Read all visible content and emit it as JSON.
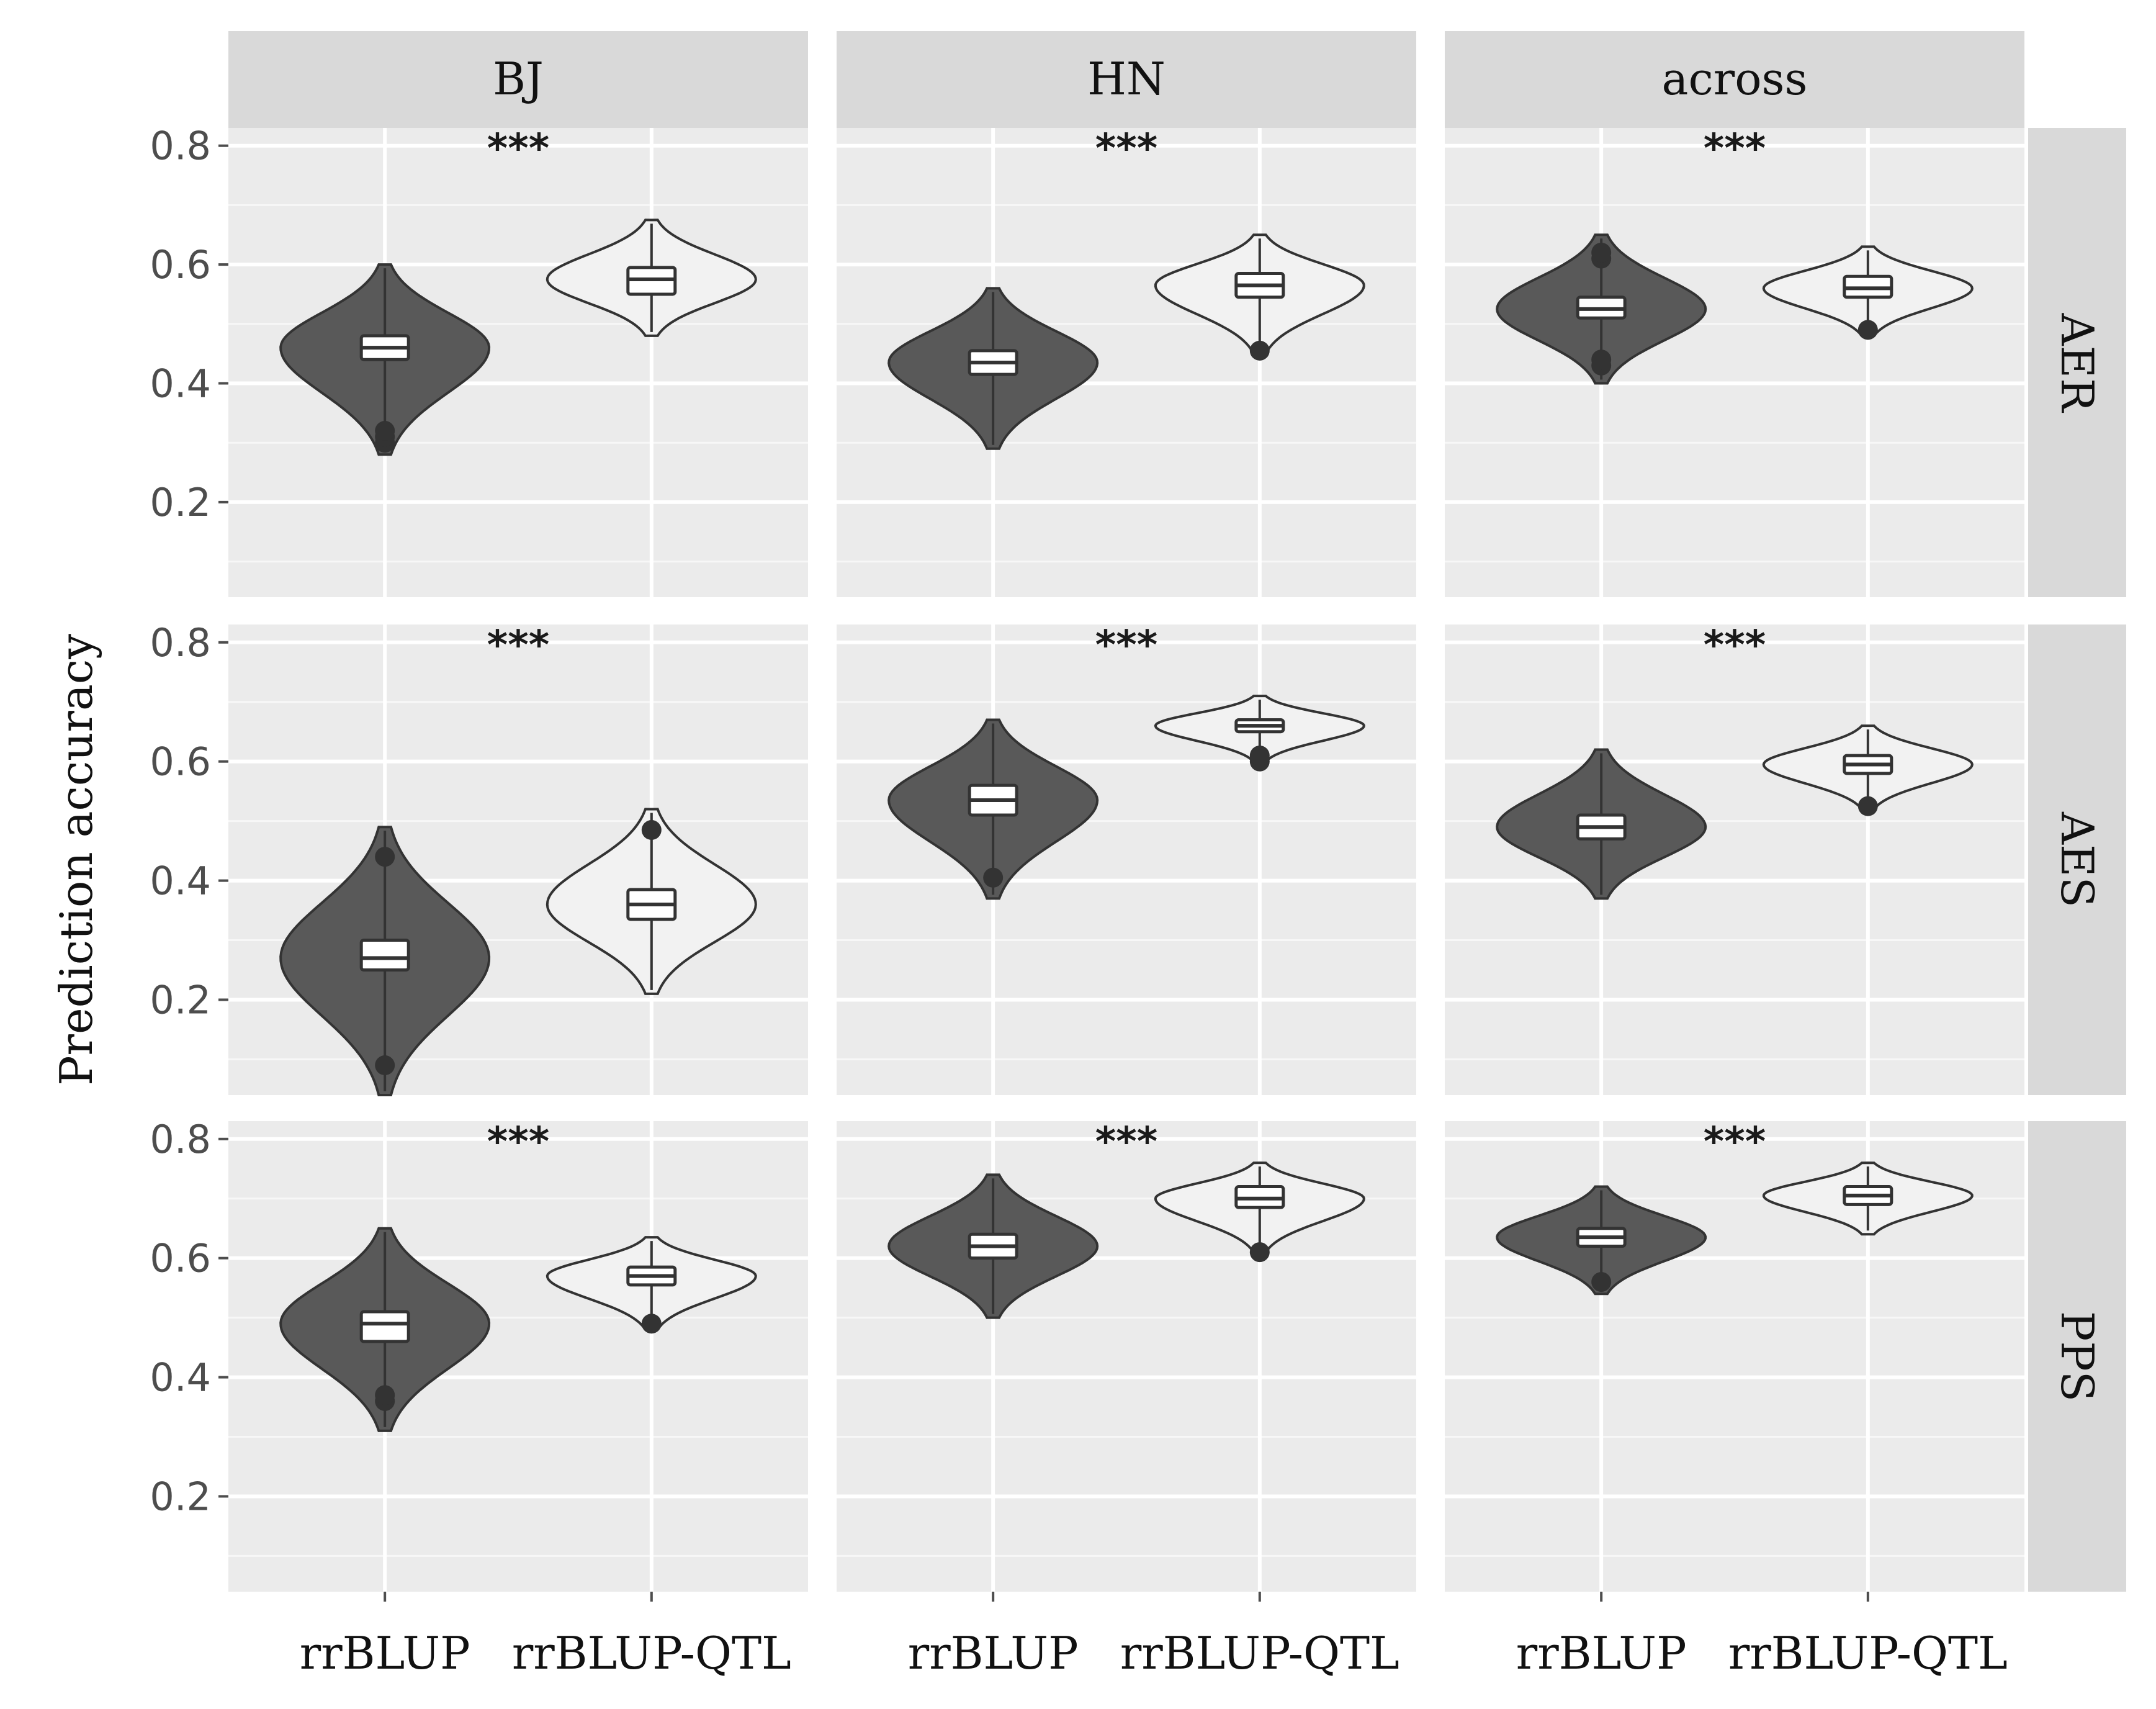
{
  "chart_data": {
    "type": "violin",
    "ylabel": "Prediction accuracy",
    "xlabel": "",
    "ylim": [
      0.04,
      0.83
    ],
    "yticks": [
      "0.2",
      "0.4",
      "0.6",
      "0.8"
    ],
    "categories": [
      "rrBLUP",
      "rrBLUP-QTL"
    ],
    "column_facets": [
      "BJ",
      "HN",
      "across"
    ],
    "row_facets": [
      "AER",
      "AES",
      "PPS"
    ],
    "significance_label": "***",
    "grid": true,
    "colors": {
      "rrBLUP": "#595959",
      "rrBLUP-QTL": "#f2f2f2",
      "panel_bg": "#ebebeb",
      "strip_bg": "#d9d9d9",
      "grid_major": "#ffffff",
      "outline": "#333333"
    },
    "panels": [
      {
        "row": "AER",
        "col": "BJ",
        "significance": "***",
        "series": [
          {
            "category": "rrBLUP",
            "min": 0.28,
            "q1": 0.44,
            "median": 0.46,
            "q3": 0.48,
            "max": 0.6,
            "outliers": [
              0.3,
              0.31,
              0.32
            ]
          },
          {
            "category": "rrBLUP-QTL",
            "min": 0.48,
            "q1": 0.55,
            "median": 0.575,
            "q3": 0.595,
            "max": 0.675,
            "outliers": []
          }
        ]
      },
      {
        "row": "AER",
        "col": "HN",
        "significance": "***",
        "series": [
          {
            "category": "rrBLUP",
            "min": 0.29,
            "q1": 0.415,
            "median": 0.435,
            "q3": 0.455,
            "max": 0.56,
            "outliers": []
          },
          {
            "category": "rrBLUP-QTL",
            "min": 0.45,
            "q1": 0.545,
            "median": 0.565,
            "q3": 0.585,
            "max": 0.65,
            "outliers": [
              0.455
            ]
          }
        ]
      },
      {
        "row": "AER",
        "col": "across",
        "significance": "***",
        "series": [
          {
            "category": "rrBLUP",
            "min": 0.4,
            "q1": 0.51,
            "median": 0.525,
            "q3": 0.545,
            "max": 0.65,
            "outliers": [
              0.43,
              0.44,
              0.61,
              0.62
            ]
          },
          {
            "category": "rrBLUP-QTL",
            "min": 0.48,
            "q1": 0.545,
            "median": 0.56,
            "q3": 0.58,
            "max": 0.63,
            "outliers": [
              0.49
            ]
          }
        ]
      },
      {
        "row": "AES",
        "col": "BJ",
        "significance": "***",
        "series": [
          {
            "category": "rrBLUP",
            "min": 0.04,
            "q1": 0.25,
            "median": 0.27,
            "q3": 0.3,
            "max": 0.49,
            "outliers": [
              0.09,
              0.44
            ]
          },
          {
            "category": "rrBLUP-QTL",
            "min": 0.21,
            "q1": 0.335,
            "median": 0.36,
            "q3": 0.385,
            "max": 0.52,
            "outliers": [
              0.485
            ]
          }
        ]
      },
      {
        "row": "AES",
        "col": "HN",
        "significance": "***",
        "series": [
          {
            "category": "rrBLUP",
            "min": 0.37,
            "q1": 0.51,
            "median": 0.535,
            "q3": 0.56,
            "max": 0.67,
            "outliers": [
              0.405
            ]
          },
          {
            "category": "rrBLUP-QTL",
            "min": 0.6,
            "q1": 0.65,
            "median": 0.66,
            "q3": 0.67,
            "max": 0.71,
            "outliers": [
              0.6,
              0.61
            ]
          }
        ]
      },
      {
        "row": "AES",
        "col": "across",
        "significance": "***",
        "series": [
          {
            "category": "rrBLUP",
            "min": 0.37,
            "q1": 0.47,
            "median": 0.49,
            "q3": 0.51,
            "max": 0.62,
            "outliers": []
          },
          {
            "category": "rrBLUP-QTL",
            "min": 0.52,
            "q1": 0.58,
            "median": 0.595,
            "q3": 0.61,
            "max": 0.66,
            "outliers": [
              0.525
            ]
          }
        ]
      },
      {
        "row": "PPS",
        "col": "BJ",
        "significance": "***",
        "series": [
          {
            "category": "rrBLUP",
            "min": 0.31,
            "q1": 0.46,
            "median": 0.49,
            "q3": 0.51,
            "max": 0.65,
            "outliers": [
              0.36,
              0.37
            ]
          },
          {
            "category": "rrBLUP-QTL",
            "min": 0.48,
            "q1": 0.555,
            "median": 0.57,
            "q3": 0.585,
            "max": 0.635,
            "outliers": [
              0.49
            ]
          }
        ]
      },
      {
        "row": "PPS",
        "col": "HN",
        "significance": "***",
        "series": [
          {
            "category": "rrBLUP",
            "min": 0.5,
            "q1": 0.6,
            "median": 0.62,
            "q3": 0.64,
            "max": 0.74,
            "outliers": []
          },
          {
            "category": "rrBLUP-QTL",
            "min": 0.61,
            "q1": 0.685,
            "median": 0.7,
            "q3": 0.72,
            "max": 0.76,
            "outliers": [
              0.61
            ]
          }
        ]
      },
      {
        "row": "PPS",
        "col": "across",
        "significance": "***",
        "series": [
          {
            "category": "rrBLUP",
            "min": 0.54,
            "q1": 0.62,
            "median": 0.635,
            "q3": 0.65,
            "max": 0.72,
            "outliers": [
              0.56
            ]
          },
          {
            "category": "rrBLUP-QTL",
            "min": 0.64,
            "q1": 0.69,
            "median": 0.705,
            "q3": 0.72,
            "max": 0.76,
            "outliers": []
          }
        ]
      }
    ]
  }
}
